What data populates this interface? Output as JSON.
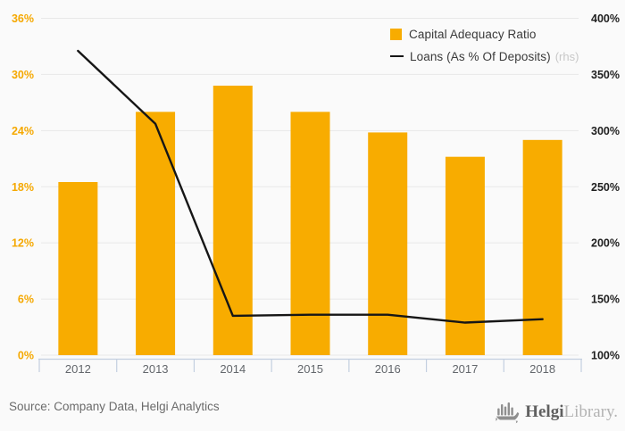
{
  "chart_data": {
    "type": "bar+line",
    "title": "",
    "categories": [
      "2012",
      "2013",
      "2014",
      "2015",
      "2016",
      "2017",
      "2018"
    ],
    "series": [
      {
        "name": "Capital Adequacy Ratio",
        "type": "bar",
        "axis": "left",
        "values": [
          18.5,
          26.0,
          28.8,
          26.0,
          23.8,
          21.2,
          23.0
        ],
        "unit": "%"
      },
      {
        "name": "Loans (As % Of Deposits)",
        "type": "line",
        "axis": "right",
        "values": [
          371,
          306,
          135,
          136,
          136,
          129,
          132
        ],
        "unit": "%"
      }
    ],
    "left_axis": {
      "min": 0,
      "max": 36,
      "ticks": [
        0,
        6,
        12,
        18,
        24,
        30,
        36
      ],
      "tick_labels": [
        "0%",
        "6%",
        "12%",
        "18%",
        "24%",
        "30%",
        "36%"
      ]
    },
    "right_axis": {
      "min": 100,
      "max": 400,
      "ticks": [
        100,
        150,
        200,
        250,
        300,
        350,
        400
      ],
      "tick_labels": [
        "100%",
        "150%",
        "200%",
        "250%",
        "300%",
        "350%",
        "400%"
      ]
    },
    "grid": true,
    "legend_position": "top-right"
  },
  "legend": {
    "items": [
      {
        "label": "Capital Adequacy Ratio",
        "suffix": ""
      },
      {
        "label": "Loans (As % Of Deposits)",
        "suffix": "(rhs)"
      }
    ]
  },
  "footer": {
    "source": "Source: Company Data, Helgi Analytics",
    "brand_primary": "Helgi",
    "brand_secondary": "Library."
  },
  "colors": {
    "background": "#FAFAFA",
    "bar": "#F8AC00",
    "line": "#161616",
    "grid": "#E8E8E8",
    "axis_left_label": "#F5A800",
    "axis_right_label": "#1F1F1F",
    "x_label": "#63676C",
    "divider": "#C3CFE0",
    "legend_text": "#3A3A3A",
    "rhs_text": "#C8C8C8",
    "source_text": "#6B6B6B",
    "brand_dark": "#606060",
    "brand_light": "#B3B3B3"
  }
}
